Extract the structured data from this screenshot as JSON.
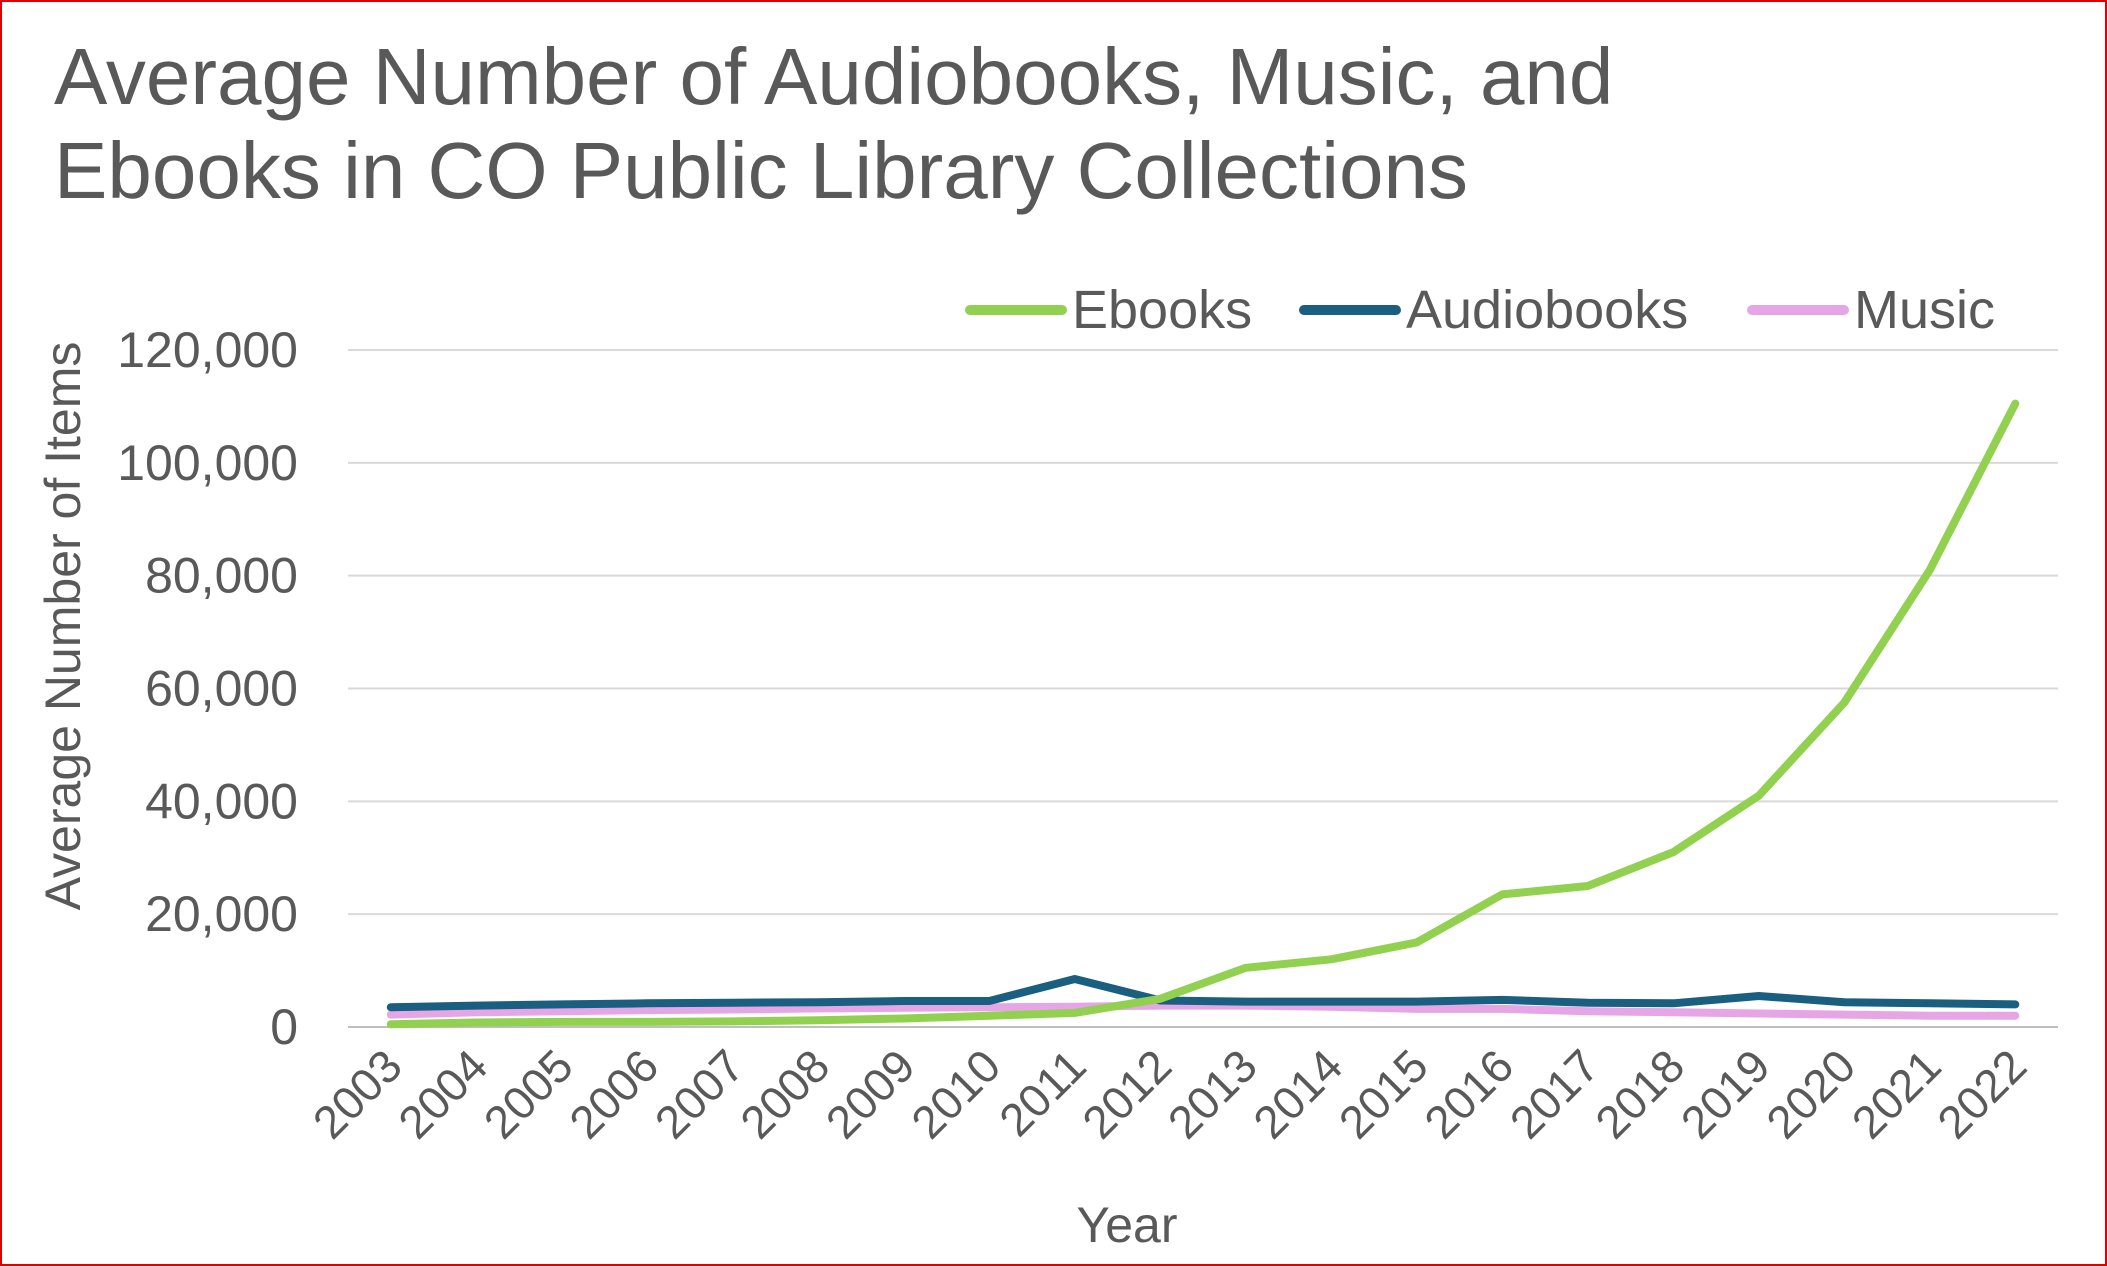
{
  "chart_data": {
    "type": "line",
    "title": "Average Number of Audiobooks, Music, and Ebooks in CO Public Library Collections",
    "xlabel": "Year",
    "ylabel": "Average Number of Items",
    "ylim": [
      0,
      120000
    ],
    "yticks": [
      0,
      20000,
      40000,
      60000,
      80000,
      100000,
      120000
    ],
    "ytick_labels": [
      "0",
      "20,000",
      "40,000",
      "60,000",
      "80,000",
      "100,000",
      "120,000"
    ],
    "grid": true,
    "legend_position": "top-right",
    "categories": [
      "2003",
      "2004",
      "2005",
      "2006",
      "2007",
      "2008",
      "2009",
      "2010",
      "2011",
      "2012",
      "2013",
      "2014",
      "2015",
      "2016",
      "2017",
      "2018",
      "2019",
      "2020",
      "2021",
      "2022"
    ],
    "series": [
      {
        "name": "Ebooks",
        "color": "#92d050",
        "values": [
          500,
          800,
          900,
          900,
          1000,
          1200,
          1500,
          2000,
          2500,
          5000,
          10500,
          12000,
          15000,
          23500,
          25000,
          31000,
          41000,
          57500,
          81000,
          110500
        ]
      },
      {
        "name": "Audiobooks",
        "color": "#1a5e80",
        "values": [
          3500,
          3800,
          4000,
          4200,
          4300,
          4400,
          4600,
          4600,
          8500,
          4700,
          4500,
          4500,
          4500,
          4800,
          4300,
          4200,
          5500,
          4400,
          4200,
          4000
        ]
      },
      {
        "name": "Music",
        "color": "#e6a6e6",
        "values": [
          2200,
          2600,
          2800,
          3000,
          3100,
          3300,
          3400,
          3500,
          3600,
          3800,
          3800,
          3600,
          3200,
          3200,
          2800,
          2600,
          2400,
          2200,
          2000,
          2000
        ]
      }
    ]
  },
  "style": {
    "text_color": "#595959",
    "gridline_color": "#d9d9d9",
    "border_color": "#e00000"
  }
}
